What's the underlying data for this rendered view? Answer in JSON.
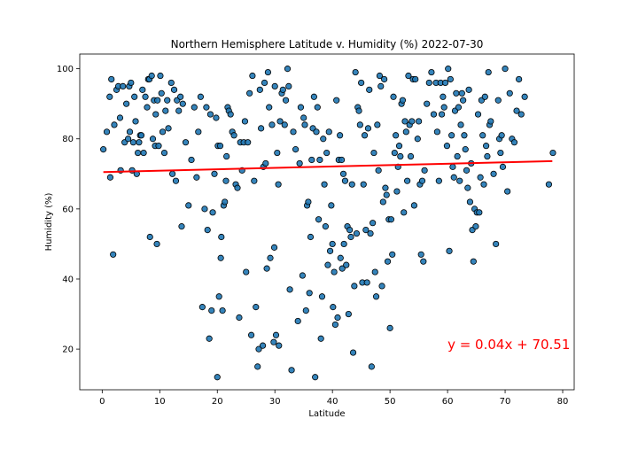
{
  "chart_data": {
    "type": "scatter",
    "title": "Northern Hemisphere Latitude v. Humidity (%) 2022-07-30",
    "xlabel": "Latitude",
    "ylabel": "Humidity (%)",
    "xlim": [
      -3.9,
      82.0
    ],
    "ylim": [
      8.4,
      104.2
    ],
    "xticks": [
      0,
      10,
      20,
      30,
      40,
      50,
      60,
      70,
      80
    ],
    "yticks": [
      20,
      40,
      60,
      80,
      100
    ],
    "grid": false,
    "marker_color": "#1f77b4",
    "marker_edge_color": "#000000",
    "regression": {
      "slope": 0.04,
      "intercept": 70.51,
      "x_range": [
        0.2,
        78.2
      ],
      "color": "#ff0000",
      "equation": "y = 0.04x + 70.51",
      "annotation_at": [
        60,
        20
      ]
    },
    "points": [
      [
        0.2,
        77
      ],
      [
        0.8,
        82
      ],
      [
        1.3,
        92
      ],
      [
        1.6,
        97
      ],
      [
        1.4,
        69
      ],
      [
        1.9,
        47
      ],
      [
        2.1,
        84
      ],
      [
        2.5,
        94
      ],
      [
        2.8,
        95
      ],
      [
        3.1,
        86
      ],
      [
        3.2,
        71
      ],
      [
        3.6,
        95
      ],
      [
        3.9,
        79
      ],
      [
        4.2,
        90
      ],
      [
        4.5,
        80
      ],
      [
        4.7,
        95
      ],
      [
        4.8,
        82
      ],
      [
        5.0,
        96
      ],
      [
        5.2,
        71
      ],
      [
        5.4,
        79
      ],
      [
        5.6,
        92
      ],
      [
        5.8,
        85
      ],
      [
        6.0,
        70
      ],
      [
        6.2,
        76
      ],
      [
        6.4,
        79
      ],
      [
        6.6,
        81
      ],
      [
        6.8,
        81
      ],
      [
        7.0,
        94
      ],
      [
        7.2,
        76
      ],
      [
        7.5,
        92
      ],
      [
        7.8,
        89
      ],
      [
        8.0,
        97
      ],
      [
        8.2,
        97
      ],
      [
        8.3,
        52
      ],
      [
        8.6,
        98
      ],
      [
        8.8,
        80
      ],
      [
        9.0,
        91
      ],
      [
        9.2,
        78
      ],
      [
        9.3,
        87
      ],
      [
        9.5,
        50
      ],
      [
        9.6,
        91
      ],
      [
        9.8,
        78
      ],
      [
        10.1,
        98
      ],
      [
        10.3,
        93
      ],
      [
        10.5,
        82
      ],
      [
        10.8,
        76
      ],
      [
        11.0,
        88
      ],
      [
        11.3,
        91
      ],
      [
        11.5,
        83
      ],
      [
        12.0,
        96
      ],
      [
        12.2,
        70
      ],
      [
        12.5,
        94
      ],
      [
        12.8,
        68
      ],
      [
        13.0,
        91
      ],
      [
        13.3,
        88
      ],
      [
        13.6,
        92
      ],
      [
        13.8,
        55
      ],
      [
        14.0,
        90
      ],
      [
        14.5,
        79
      ],
      [
        15.0,
        61
      ],
      [
        15.5,
        74
      ],
      [
        16.0,
        89
      ],
      [
        16.4,
        69
      ],
      [
        16.7,
        82
      ],
      [
        17.1,
        92
      ],
      [
        17.4,
        32
      ],
      [
        17.8,
        60
      ],
      [
        18.1,
        89
      ],
      [
        18.3,
        54
      ],
      [
        18.6,
        23
      ],
      [
        18.8,
        87
      ],
      [
        19.0,
        31
      ],
      [
        19.2,
        59
      ],
      [
        19.5,
        70
      ],
      [
        19.8,
        86
      ],
      [
        20.0,
        12
      ],
      [
        20.1,
        78
      ],
      [
        20.3,
        35
      ],
      [
        20.5,
        78
      ],
      [
        20.6,
        46
      ],
      [
        20.7,
        52
      ],
      [
        20.9,
        31
      ],
      [
        21.1,
        61
      ],
      [
        21.3,
        62
      ],
      [
        21.5,
        68
      ],
      [
        21.6,
        75
      ],
      [
        21.8,
        89
      ],
      [
        22.0,
        88
      ],
      [
        22.3,
        87
      ],
      [
        22.6,
        82
      ],
      [
        22.9,
        81
      ],
      [
        23.2,
        67
      ],
      [
        23.5,
        66
      ],
      [
        23.8,
        29
      ],
      [
        24.0,
        79
      ],
      [
        24.3,
        71
      ],
      [
        24.6,
        79
      ],
      [
        24.8,
        85
      ],
      [
        25.0,
        42
      ],
      [
        25.3,
        79
      ],
      [
        25.6,
        93
      ],
      [
        25.9,
        24
      ],
      [
        26.1,
        98
      ],
      [
        26.4,
        68
      ],
      [
        26.7,
        32
      ],
      [
        27.0,
        15
      ],
      [
        27.2,
        20
      ],
      [
        27.4,
        94
      ],
      [
        27.6,
        83
      ],
      [
        27.9,
        21
      ],
      [
        28.0,
        72
      ],
      [
        28.2,
        96
      ],
      [
        28.4,
        73
      ],
      [
        28.6,
        43
      ],
      [
        28.8,
        99
      ],
      [
        29.0,
        89
      ],
      [
        29.2,
        46
      ],
      [
        29.5,
        84
      ],
      [
        29.8,
        22
      ],
      [
        29.9,
        49
      ],
      [
        30.0,
        95
      ],
      [
        30.2,
        24
      ],
      [
        30.4,
        76
      ],
      [
        30.6,
        67
      ],
      [
        30.7,
        21
      ],
      [
        30.9,
        85
      ],
      [
        31.2,
        93
      ],
      [
        31.4,
        94
      ],
      [
        31.7,
        84
      ],
      [
        31.9,
        91
      ],
      [
        32.2,
        100
      ],
      [
        32.4,
        95
      ],
      [
        32.6,
        37
      ],
      [
        32.9,
        14
      ],
      [
        33.2,
        82
      ],
      [
        33.6,
        77
      ],
      [
        34.0,
        28
      ],
      [
        34.3,
        73
      ],
      [
        34.5,
        89
      ],
      [
        34.8,
        41
      ],
      [
        35.0,
        86
      ],
      [
        35.2,
        84
      ],
      [
        35.4,
        31
      ],
      [
        35.6,
        61
      ],
      [
        35.8,
        62
      ],
      [
        36.0,
        36
      ],
      [
        36.2,
        52
      ],
      [
        36.4,
        74
      ],
      [
        36.6,
        83
      ],
      [
        36.8,
        92
      ],
      [
        37.0,
        12
      ],
      [
        37.2,
        82
      ],
      [
        37.4,
        89
      ],
      [
        37.6,
        57
      ],
      [
        37.8,
        74
      ],
      [
        38.0,
        23
      ],
      [
        38.2,
        35
      ],
      [
        38.4,
        80
      ],
      [
        38.6,
        67
      ],
      [
        38.8,
        55
      ],
      [
        39.0,
        76
      ],
      [
        39.2,
        44
      ],
      [
        39.4,
        82
      ],
      [
        39.6,
        48
      ],
      [
        39.8,
        61
      ],
      [
        40.0,
        50
      ],
      [
        40.1,
        32
      ],
      [
        40.3,
        42
      ],
      [
        40.5,
        27
      ],
      [
        40.7,
        91
      ],
      [
        40.9,
        29
      ],
      [
        41.1,
        74
      ],
      [
        41.3,
        81
      ],
      [
        41.4,
        46
      ],
      [
        41.6,
        74
      ],
      [
        41.7,
        43
      ],
      [
        41.9,
        70
      ],
      [
        42.0,
        50
      ],
      [
        42.2,
        68
      ],
      [
        42.4,
        44
      ],
      [
        42.6,
        55
      ],
      [
        42.8,
        30
      ],
      [
        43.0,
        54
      ],
      [
        43.2,
        52
      ],
      [
        43.4,
        67
      ],
      [
        43.6,
        19
      ],
      [
        43.8,
        38
      ],
      [
        44.0,
        99
      ],
      [
        44.2,
        53
      ],
      [
        44.4,
        89
      ],
      [
        44.6,
        88
      ],
      [
        44.8,
        84
      ],
      [
        45.0,
        96
      ],
      [
        45.2,
        39
      ],
      [
        45.4,
        67
      ],
      [
        45.6,
        81
      ],
      [
        45.8,
        54
      ],
      [
        46.0,
        39
      ],
      [
        46.2,
        83
      ],
      [
        46.4,
        94
      ],
      [
        46.6,
        53
      ],
      [
        46.8,
        15
      ],
      [
        47.0,
        56
      ],
      [
        47.2,
        76
      ],
      [
        47.4,
        42
      ],
      [
        47.6,
        35
      ],
      [
        47.8,
        84
      ],
      [
        48.0,
        71
      ],
      [
        48.2,
        98
      ],
      [
        48.4,
        95
      ],
      [
        48.6,
        38
      ],
      [
        48.8,
        62
      ],
      [
        49.0,
        97
      ],
      [
        49.2,
        66
      ],
      [
        49.4,
        64
      ],
      [
        49.6,
        45
      ],
      [
        49.8,
        57
      ],
      [
        50.0,
        26
      ],
      [
        50.2,
        57
      ],
      [
        50.4,
        47
      ],
      [
        50.6,
        92
      ],
      [
        50.8,
        76
      ],
      [
        51.0,
        81
      ],
      [
        51.2,
        65
      ],
      [
        51.4,
        72
      ],
      [
        51.6,
        78
      ],
      [
        51.8,
        75
      ],
      [
        52.0,
        90
      ],
      [
        52.2,
        91
      ],
      [
        52.4,
        59
      ],
      [
        52.6,
        85
      ],
      [
        52.8,
        82
      ],
      [
        53.0,
        68
      ],
      [
        53.2,
        98
      ],
      [
        53.4,
        84
      ],
      [
        53.6,
        75
      ],
      [
        53.8,
        85
      ],
      [
        54.0,
        97
      ],
      [
        54.2,
        61
      ],
      [
        54.4,
        97
      ],
      [
        54.8,
        80
      ],
      [
        55.0,
        85
      ],
      [
        55.2,
        67
      ],
      [
        55.4,
        47
      ],
      [
        55.6,
        68
      ],
      [
        55.8,
        45
      ],
      [
        56.0,
        71
      ],
      [
        56.4,
        90
      ],
      [
        56.8,
        96
      ],
      [
        57.2,
        99
      ],
      [
        57.6,
        87
      ],
      [
        58.0,
        96
      ],
      [
        58.2,
        82
      ],
      [
        58.5,
        68
      ],
      [
        58.8,
        96
      ],
      [
        59.0,
        87
      ],
      [
        59.2,
        92
      ],
      [
        59.4,
        89
      ],
      [
        59.6,
        96
      ],
      [
        59.9,
        78
      ],
      [
        60.1,
        100
      ],
      [
        60.3,
        48
      ],
      [
        60.5,
        97
      ],
      [
        60.7,
        81
      ],
      [
        60.9,
        72
      ],
      [
        61.1,
        69
      ],
      [
        61.3,
        88
      ],
      [
        61.5,
        93
      ],
      [
        61.7,
        75
      ],
      [
        61.9,
        89
      ],
      [
        62.1,
        68
      ],
      [
        62.3,
        84
      ],
      [
        62.5,
        93
      ],
      [
        62.7,
        91
      ],
      [
        62.9,
        81
      ],
      [
        63.1,
        77
      ],
      [
        63.3,
        71
      ],
      [
        63.5,
        66
      ],
      [
        63.7,
        94
      ],
      [
        63.9,
        62
      ],
      [
        64.1,
        73
      ],
      [
        64.3,
        54
      ],
      [
        64.5,
        45
      ],
      [
        64.7,
        60
      ],
      [
        64.9,
        55
      ],
      [
        65.1,
        59
      ],
      [
        65.3,
        87
      ],
      [
        65.5,
        59
      ],
      [
        65.7,
        69
      ],
      [
        65.9,
        91
      ],
      [
        66.1,
        81
      ],
      [
        66.3,
        67
      ],
      [
        66.5,
        92
      ],
      [
        66.7,
        78
      ],
      [
        66.9,
        75
      ],
      [
        67.1,
        99
      ],
      [
        67.3,
        84
      ],
      [
        67.5,
        85
      ],
      [
        68.0,
        70
      ],
      [
        68.4,
        50
      ],
      [
        68.8,
        91
      ],
      [
        69.0,
        80
      ],
      [
        69.2,
        76
      ],
      [
        69.4,
        81
      ],
      [
        69.6,
        72
      ],
      [
        70.0,
        100
      ],
      [
        70.4,
        65
      ],
      [
        70.8,
        93
      ],
      [
        71.2,
        80
      ],
      [
        71.6,
        79
      ],
      [
        72.0,
        88
      ],
      [
        72.4,
        97
      ],
      [
        72.8,
        87
      ],
      [
        73.4,
        92
      ],
      [
        77.6,
        67
      ],
      [
        78.3,
        76
      ]
    ]
  }
}
